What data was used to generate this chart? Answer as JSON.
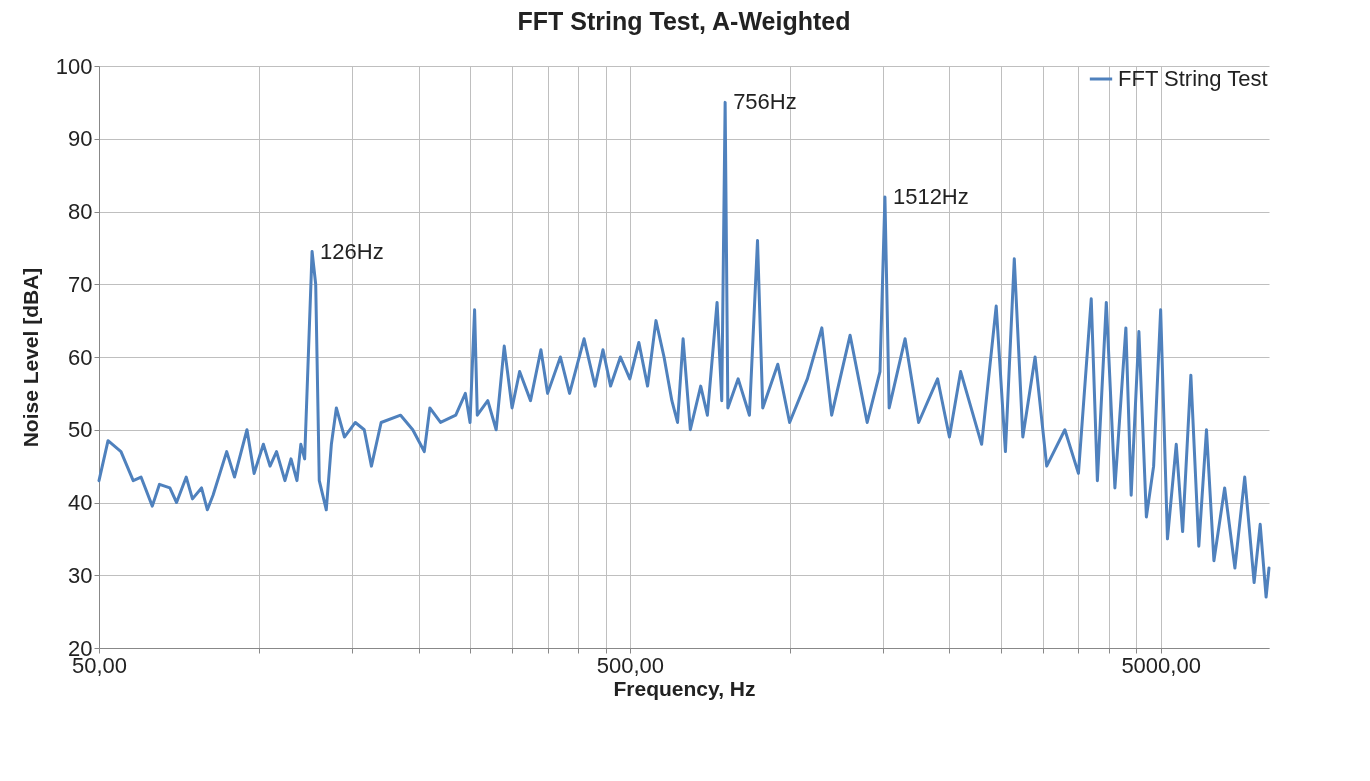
{
  "chart_data": {
    "type": "line",
    "title": "FFT String Test, A-Weighted",
    "xlabel": "Frequency, Hz",
    "ylabel": "Noise Level [dBA]",
    "log": "x",
    "grid": true,
    "legend": "top right",
    "marker": "none",
    "line_style": "solid",
    "xlim": [
      50,
      8000
    ],
    "ylim": [
      20,
      100
    ],
    "xticks": [
      {
        "value": 50,
        "label": "50,00"
      },
      {
        "value": 100,
        "label": null
      },
      {
        "value": 150,
        "label": null
      },
      {
        "value": 200,
        "label": null
      },
      {
        "value": 250,
        "label": null
      },
      {
        "value": 300,
        "label": null
      },
      {
        "value": 350,
        "label": null
      },
      {
        "value": 400,
        "label": null
      },
      {
        "value": 450,
        "label": null
      },
      {
        "value": 500,
        "label": "500,00"
      },
      {
        "value": 1000,
        "label": null
      },
      {
        "value": 1500,
        "label": null
      },
      {
        "value": 2000,
        "label": null
      },
      {
        "value": 2500,
        "label": null
      },
      {
        "value": 3000,
        "label": null
      },
      {
        "value": 3500,
        "label": null
      },
      {
        "value": 4000,
        "label": null
      },
      {
        "value": 4500,
        "label": null
      },
      {
        "value": 5000,
        "label": "5000,00"
      }
    ],
    "yticks": [
      20,
      30,
      40,
      50,
      60,
      70,
      80,
      90,
      100
    ],
    "annotations": [
      {
        "text": "126Hz",
        "x": 126,
        "y": 74.5
      },
      {
        "text": "756Hz",
        "x": 756,
        "y": 95
      },
      {
        "text": "1512Hz",
        "x": 1512,
        "y": 82
      }
    ],
    "series": [
      {
        "name": "FFT String Test",
        "color": "#4f81bd",
        "x": [
          50,
          52,
          55,
          58,
          60,
          63,
          65,
          68,
          70,
          73,
          75,
          78,
          80,
          82,
          87,
          90,
          95,
          98,
          102,
          105,
          108,
          112,
          115,
          118,
          120,
          122,
          126,
          128,
          130,
          134,
          137,
          140,
          145,
          152,
          158,
          163,
          170,
          185,
          195,
          205,
          210,
          220,
          235,
          245,
          250,
          255,
          258,
          270,
          280,
          290,
          300,
          310,
          325,
          340,
          350,
          370,
          385,
          410,
          430,
          445,
          460,
          480,
          500,
          520,
          540,
          560,
          580,
          600,
          615,
          630,
          650,
          680,
          700,
          730,
          745,
          756,
          765,
          800,
          840,
          870,
          890,
          950,
          1000,
          1080,
          1150,
          1200,
          1300,
          1400,
          1480,
          1512,
          1540,
          1650,
          1750,
          1900,
          2000,
          2100,
          2300,
          2450,
          2550,
          2650,
          2750,
          2900,
          3050,
          3300,
          3500,
          3700,
          3800,
          3950,
          4100,
          4300,
          4400,
          4550,
          4700,
          4850,
          5000,
          5150,
          5350,
          5500,
          5700,
          5900,
          6100,
          6300,
          6600,
          6900,
          7200,
          7500,
          7700,
          7900,
          8000
        ],
        "values": [
          43,
          48.5,
          47,
          43,
          43.5,
          39.5,
          42.5,
          42,
          40,
          43.5,
          40.5,
          42,
          39,
          41,
          47,
          43.5,
          50,
          44,
          48,
          45,
          47,
          43,
          46,
          43,
          48,
          46,
          74.5,
          70,
          43,
          39,
          48,
          53,
          49,
          51,
          50,
          45,
          51,
          52,
          50,
          47,
          53,
          51,
          52,
          55,
          51,
          66.5,
          52,
          54,
          50,
          61.5,
          53,
          58,
          54,
          61,
          55,
          60,
          55,
          62.5,
          56,
          61,
          56,
          60,
          57,
          62,
          56,
          65,
          60,
          54,
          51,
          62.5,
          50,
          56,
          52,
          67.5,
          54,
          95,
          53,
          57,
          52,
          76,
          53,
          59,
          51,
          57,
          64,
          52,
          63,
          51,
          58,
          82,
          53,
          62.5,
          51,
          57,
          49,
          58,
          48,
          67,
          47,
          73.5,
          49,
          60,
          45,
          50,
          44,
          68,
          43,
          67.5,
          42,
          64,
          41,
          63.5,
          38,
          45,
          66.5,
          35,
          48,
          36,
          57.5,
          34,
          50,
          32,
          42,
          31,
          43.5,
          29,
          37,
          27,
          31
        ]
      }
    ]
  }
}
